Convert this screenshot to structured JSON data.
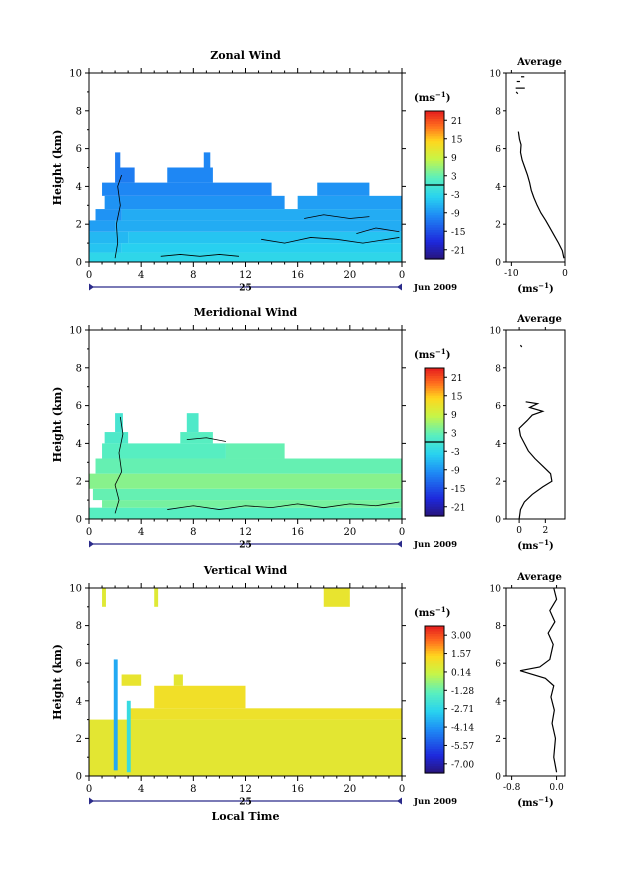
{
  "chart_data": [
    {
      "type": "heatmap",
      "title": "Zonal Wind",
      "ylabel": "Height (km)",
      "xlabel": "",
      "yticks": [
        "0",
        "2",
        "4",
        "6",
        "8",
        "10"
      ],
      "xticks": [
        "0",
        "4",
        "8",
        "12",
        "16",
        "20",
        "0"
      ],
      "xlim": [
        0,
        24
      ],
      "ylim": [
        0,
        10
      ],
      "day_label": "25",
      "date_label": "Jun 2009",
      "colorbar": {
        "unit_base": "(ms",
        "unit_exp": "−1",
        "unit_close": ")",
        "ticks": [
          "21",
          "15",
          "9",
          "3",
          "-3",
          "-9",
          "-15",
          "-21"
        ],
        "zero_line_value": 0
      },
      "average": {
        "title": "Average",
        "xticks": [
          "-10",
          "0"
        ],
        "xlim": [
          -11,
          0
        ],
        "ylim": [
          0,
          10
        ],
        "yticks": [
          "0",
          "2",
          "4",
          "6",
          "8",
          "10"
        ],
        "xlabel_base": "(ms",
        "xlabel_exp": "−1",
        "xlabel_close": ")",
        "profile": [
          [
            -0.2,
            0.2
          ],
          [
            -0.5,
            0.6
          ],
          [
            -1.2,
            1.0
          ],
          [
            -2.0,
            1.4
          ],
          [
            -2.8,
            1.8
          ],
          [
            -3.6,
            2.2
          ],
          [
            -4.5,
            2.6
          ],
          [
            -5.2,
            3.0
          ],
          [
            -5.8,
            3.4
          ],
          [
            -6.3,
            3.8
          ],
          [
            -6.6,
            4.2
          ],
          [
            -7.0,
            4.6
          ],
          [
            -7.5,
            5.0
          ],
          [
            -8.0,
            5.4
          ],
          [
            -8.3,
            5.8
          ],
          [
            -8.2,
            6.2
          ],
          [
            -8.5,
            6.5
          ],
          [
            -8.7,
            6.9
          ]
        ],
        "extra_segments": [
          [
            [
              -9.2,
              9.2
            ],
            [
              -7.5,
              9.2
            ]
          ],
          [
            [
              -9.0,
              9.55
            ],
            [
              -8.4,
              9.55
            ]
          ],
          [
            [
              -8.2,
              9.8
            ],
            [
              -7.6,
              9.8
            ]
          ],
          [
            [
              -9.1,
              9.0
            ],
            [
              -8.8,
              8.9
            ]
          ]
        ]
      },
      "rows": [
        {
          "y": [
            0.0,
            0.5
          ],
          "segments": [
            [
              0.0,
              24.0,
              -3
            ]
          ]
        },
        {
          "y": [
            0.5,
            1.0
          ],
          "segments": [
            [
              0.0,
              2.5,
              -5
            ],
            [
              2.5,
              24.0,
              -4
            ]
          ]
        },
        {
          "y": [
            1.0,
            1.6
          ],
          "segments": [
            [
              0.0,
              3.0,
              -6
            ],
            [
              3.0,
              24.0,
              -5
            ]
          ]
        },
        {
          "y": [
            1.6,
            2.2
          ],
          "segments": [
            [
              0.0,
              2.0,
              -8
            ],
            [
              2.0,
              24.0,
              -7
            ]
          ]
        },
        {
          "y": [
            2.2,
            2.8
          ],
          "segments": [
            [
              0.5,
              2.5,
              -9
            ],
            [
              2.5,
              24.0,
              -7
            ]
          ]
        },
        {
          "y": [
            2.8,
            3.5
          ],
          "segments": [
            [
              1.2,
              15.0,
              -9
            ],
            [
              16.0,
              24.0,
              -8
            ]
          ]
        },
        {
          "y": [
            3.5,
            4.2
          ],
          "segments": [
            [
              1.0,
              14.0,
              -10
            ],
            [
              17.5,
              21.5,
              -9
            ]
          ]
        },
        {
          "y": [
            4.2,
            5.0
          ],
          "segments": [
            [
              2.0,
              3.5,
              -11
            ],
            [
              6.0,
              9.5,
              -10
            ]
          ]
        },
        {
          "y": [
            5.0,
            5.8
          ],
          "segments": [
            [
              2.0,
              2.4,
              -11
            ],
            [
              8.8,
              9.3,
              -10
            ]
          ]
        }
      ],
      "contours": [
        [
          [
            2.0,
            0.2
          ],
          [
            2.2,
            1.0
          ],
          [
            2.1,
            2.0
          ],
          [
            2.4,
            3.0
          ],
          [
            2.2,
            4.0
          ],
          [
            2.5,
            4.6
          ]
        ],
        [
          [
            13.2,
            1.2
          ],
          [
            15.0,
            1.0
          ],
          [
            17.0,
            1.3
          ],
          [
            19.0,
            1.2
          ],
          [
            21.0,
            1.0
          ],
          [
            23.8,
            1.3
          ]
        ],
        [
          [
            16.5,
            2.3
          ],
          [
            18.0,
            2.5
          ],
          [
            20.0,
            2.3
          ],
          [
            21.5,
            2.4
          ]
        ],
        [
          [
            20.5,
            1.5
          ],
          [
            22.0,
            1.8
          ],
          [
            23.8,
            1.6
          ]
        ],
        [
          [
            5.5,
            0.3
          ],
          [
            7.0,
            0.4
          ],
          [
            8.5,
            0.3
          ],
          [
            10.0,
            0.4
          ],
          [
            11.5,
            0.3
          ]
        ]
      ]
    },
    {
      "type": "heatmap",
      "title": "Meridional Wind",
      "ylabel": "Height (km)",
      "xlabel": "",
      "yticks": [
        "0",
        "2",
        "4",
        "6",
        "8",
        "10"
      ],
      "xticks": [
        "0",
        "4",
        "8",
        "12",
        "16",
        "20",
        "0"
      ],
      "xlim": [
        0,
        24
      ],
      "ylim": [
        0,
        10
      ],
      "day_label": "25",
      "date_label": "Jun 2009",
      "colorbar": {
        "unit_base": "(ms",
        "unit_exp": "−1",
        "unit_close": ")",
        "ticks": [
          "21",
          "15",
          "9",
          "3",
          "-3",
          "-9",
          "-15",
          "-21"
        ],
        "zero_line_value": 0
      },
      "average": {
        "title": "Average",
        "xticks": [
          "0",
          "2"
        ],
        "xlim": [
          -1,
          3.5
        ],
        "ylim": [
          0,
          10
        ],
        "yticks": [
          "0",
          "2",
          "4",
          "6",
          "8",
          "10"
        ],
        "xlabel_base": "(ms",
        "xlabel_exp": "−1",
        "xlabel_close": ")",
        "profile": [
          [
            0.0,
            0.0
          ],
          [
            0.1,
            0.5
          ],
          [
            0.4,
            0.9
          ],
          [
            1.0,
            1.3
          ],
          [
            1.8,
            1.7
          ],
          [
            2.5,
            2.0
          ],
          [
            2.4,
            2.4
          ],
          [
            1.8,
            2.8
          ],
          [
            1.2,
            3.2
          ],
          [
            0.7,
            3.6
          ],
          [
            0.4,
            4.0
          ],
          [
            0.1,
            4.4
          ],
          [
            0.0,
            4.8
          ],
          [
            0.6,
            5.2
          ],
          [
            1.0,
            5.5
          ],
          [
            1.8,
            5.7
          ],
          [
            0.8,
            5.9
          ],
          [
            1.4,
            6.1
          ],
          [
            0.5,
            6.2
          ]
        ],
        "extra_segments": [
          [
            [
              0.1,
              9.2
            ],
            [
              0.2,
              9.1
            ]
          ]
        ]
      },
      "rows": [
        {
          "y": [
            0.0,
            0.6
          ],
          "segments": [
            [
              0.0,
              24.0,
              2
            ]
          ]
        },
        {
          "y": [
            0.6,
            1.0
          ],
          "segments": [
            [
              1.0,
              24.0,
              4
            ]
          ]
        },
        {
          "y": [
            1.0,
            1.6
          ],
          "segments": [
            [
              0.3,
              24.0,
              3
            ]
          ]
        },
        {
          "y": [
            1.6,
            2.4
          ],
          "segments": [
            [
              0.0,
              24.0,
              5
            ]
          ]
        },
        {
          "y": [
            2.4,
            3.2
          ],
          "segments": [
            [
              0.5,
              24.0,
              3
            ]
          ]
        },
        {
          "y": [
            3.2,
            4.0
          ],
          "segments": [
            [
              1.0,
              10.5,
              2
            ],
            [
              10.5,
              15.0,
              3
            ]
          ]
        },
        {
          "y": [
            4.0,
            4.6
          ],
          "segments": [
            [
              1.2,
              3.0,
              1
            ],
            [
              7.0,
              9.5,
              2
            ]
          ]
        },
        {
          "y": [
            4.6,
            5.6
          ],
          "segments": [
            [
              2.0,
              2.6,
              0
            ],
            [
              7.5,
              8.4,
              1
            ]
          ]
        }
      ],
      "contours": [
        [
          [
            2.0,
            0.3
          ],
          [
            2.3,
            1.0
          ],
          [
            2.0,
            1.8
          ],
          [
            2.5,
            2.5
          ],
          [
            2.3,
            3.5
          ],
          [
            2.6,
            4.5
          ],
          [
            2.4,
            5.4
          ]
        ],
        [
          [
            6.0,
            0.5
          ],
          [
            8.0,
            0.7
          ],
          [
            10.0,
            0.5
          ],
          [
            12.0,
            0.7
          ],
          [
            14.0,
            0.6
          ],
          [
            16.0,
            0.8
          ],
          [
            18.0,
            0.6
          ],
          [
            20.0,
            0.8
          ],
          [
            22.0,
            0.7
          ],
          [
            23.8,
            0.9
          ]
        ],
        [
          [
            7.5,
            4.2
          ],
          [
            9.0,
            4.3
          ],
          [
            10.5,
            4.1
          ]
        ]
      ]
    },
    {
      "type": "heatmap",
      "title": "Vertical Wind",
      "ylabel": "Height (km)",
      "xlabel": "Local Time",
      "yticks": [
        "0",
        "2",
        "4",
        "6",
        "8",
        "10"
      ],
      "xticks": [
        "0",
        "4",
        "8",
        "12",
        "16",
        "20",
        "0"
      ],
      "xlim": [
        0,
        24
      ],
      "ylim": [
        0,
        10
      ],
      "day_label": "25",
      "date_label": "Jun 2009",
      "colorbar": {
        "unit_base": "(ms",
        "unit_exp": "−1",
        "unit_close": ")",
        "ticks": [
          "3.00",
          "1.57",
          "0.14",
          "-1.28",
          "-2.71",
          "-4.14",
          "-5.57",
          "-7.00"
        ]
      },
      "average": {
        "title": "Average",
        "xticks": [
          "-0.8",
          "0.0"
        ],
        "xlim": [
          -0.9,
          0.15
        ],
        "ylim": [
          0,
          10
        ],
        "yticks": [
          "0",
          "2",
          "4",
          "6",
          "8",
          "10"
        ],
        "xlabel_base": "(ms",
        "xlabel_exp": "−1",
        "xlabel_close": ")",
        "profile": [
          [
            0.0,
            0.2
          ],
          [
            -0.05,
            1.0
          ],
          [
            -0.02,
            2.0
          ],
          [
            -0.08,
            2.8
          ],
          [
            -0.04,
            3.5
          ],
          [
            -0.1,
            4.2
          ],
          [
            -0.05,
            4.8
          ],
          [
            -0.2,
            5.2
          ],
          [
            -0.65,
            5.6
          ],
          [
            -0.3,
            5.8
          ],
          [
            -0.12,
            6.2
          ],
          [
            -0.06,
            7.0
          ],
          [
            -0.15,
            7.6
          ],
          [
            -0.03,
            8.2
          ],
          [
            -0.12,
            8.8
          ],
          [
            0.0,
            9.4
          ],
          [
            -0.05,
            10.0
          ]
        ],
        "extra_segments": []
      },
      "rows": [
        {
          "y": [
            0.0,
            3.0
          ],
          "segments": [
            [
              0.0,
              24.0,
              0.4
            ]
          ]
        },
        {
          "y": [
            3.0,
            3.6
          ],
          "segments": [
            [
              3.0,
              24.0,
              0.6
            ]
          ]
        },
        {
          "y": [
            3.6,
            4.8
          ],
          "segments": [
            [
              5.0,
              12.0,
              0.7
            ]
          ]
        },
        {
          "y": [
            4.8,
            5.4
          ],
          "segments": [
            [
              2.5,
              4.0,
              0.5
            ],
            [
              6.5,
              7.2,
              0.4
            ]
          ]
        },
        {
          "y": [
            9.0,
            10.0
          ],
          "segments": [
            [
              18.0,
              20.0,
              0.5
            ],
            [
              5.0,
              5.3,
              0.3
            ],
            [
              1.0,
              1.3,
              0.3
            ]
          ]
        }
      ],
      "streaks": [
        {
          "x": [
            1.9,
            2.2
          ],
          "y": [
            0.3,
            6.2
          ],
          "value": -3.5
        },
        {
          "x": [
            2.9,
            3.2
          ],
          "y": [
            0.2,
            4.0
          ],
          "value": -2.4
        }
      ],
      "contours": []
    }
  ]
}
